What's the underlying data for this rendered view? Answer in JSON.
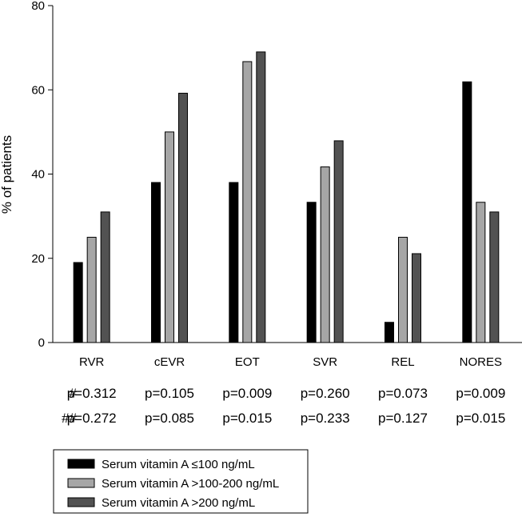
{
  "chart_data": {
    "type": "bar",
    "ylabel": "% of patients",
    "xlabel": "",
    "ylim": [
      0,
      80
    ],
    "yticks": [
      0,
      20,
      40,
      60,
      80
    ],
    "grid": false,
    "legend_position": "bottom-left",
    "categories": [
      "RVR",
      "cEVR",
      "EOT",
      "SVR",
      "REL",
      "NORES"
    ],
    "series": [
      {
        "name": "Serum vitamin A ≤100 ng/mL",
        "color": "#000000",
        "values": [
          19,
          38,
          38,
          33.3,
          4.8,
          61.9
        ]
      },
      {
        "name": "Serum vitamin A >100-200 ng/mL",
        "color": "#a6a6a6",
        "values": [
          25,
          50,
          66.7,
          41.7,
          25,
          33.3
        ]
      },
      {
        "name": "Serum vitamin A >200 ng/mL",
        "color": "#525252",
        "values": [
          31,
          59.2,
          69,
          47.9,
          21.1,
          31
        ]
      }
    ],
    "pvalue_rows": [
      {
        "marker": "#",
        "values": [
          "p=0.312",
          "p=0.105",
          "p=0.009",
          "p=0.260",
          "p=0.073",
          "p=0.009"
        ]
      },
      {
        "marker": "##",
        "values": [
          "p=0.272",
          "p=0.085",
          "p=0.015",
          "p=0.233",
          "p=0.127",
          "p=0.015"
        ]
      }
    ]
  }
}
